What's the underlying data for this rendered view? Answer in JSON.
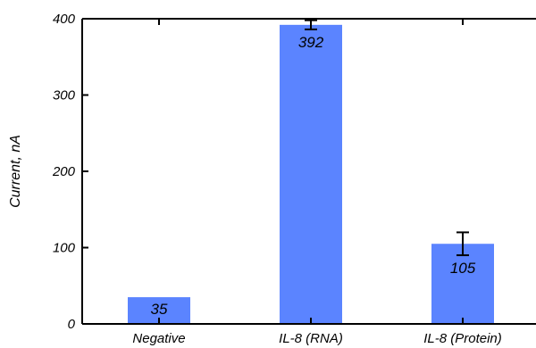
{
  "chart_data": {
    "type": "bar",
    "title": "",
    "xlabel": "",
    "ylabel": "Current, nA",
    "categories": [
      "Negative",
      "IL-8 (RNA)",
      "IL-8 (Protein)"
    ],
    "values": [
      35,
      392,
      105
    ],
    "data_labels": [
      "35",
      "392",
      "105"
    ],
    "error_bars": [
      null,
      6,
      15
    ],
    "ylim": [
      0,
      400
    ],
    "yticks": [
      "0",
      "100",
      "200",
      "300",
      "400"
    ],
    "grid": false,
    "bar_color": "#5b84ff"
  }
}
